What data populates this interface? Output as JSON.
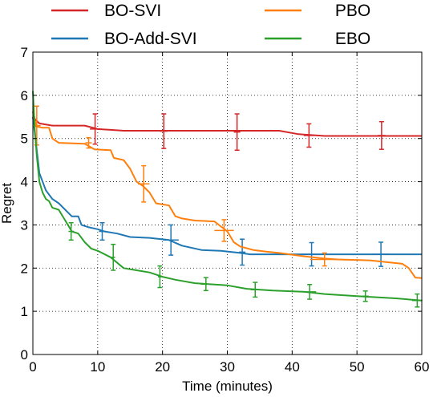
{
  "chart_data": {
    "type": "line",
    "xlabel": "Time (minutes)",
    "ylabel": "Regret",
    "xlim": [
      0,
      60
    ],
    "ylim": [
      0,
      7
    ],
    "xticks": [
      0,
      10,
      20,
      30,
      40,
      50,
      60
    ],
    "yticks": [
      0,
      1,
      2,
      3,
      4,
      5,
      6,
      7
    ],
    "grid": true,
    "legend_placement": "top",
    "series": [
      {
        "name": "BO-SVI",
        "color": "#d62728",
        "points": [
          [
            0,
            5.62
          ],
          [
            0.3,
            5.45
          ],
          [
            1,
            5.35
          ],
          [
            3,
            5.3
          ],
          [
            8,
            5.3
          ],
          [
            10,
            5.22
          ],
          [
            12,
            5.2
          ],
          [
            14,
            5.18
          ],
          [
            38,
            5.18
          ],
          [
            41,
            5.1
          ],
          [
            45,
            5.06
          ],
          [
            60,
            5.06
          ]
        ],
        "error_bars": [
          {
            "x": 9.6,
            "y": 5.22,
            "yerr": 0.35,
            "xerr": 0.8
          },
          {
            "x": 20.2,
            "y": 5.17,
            "yerr": 0.4,
            "xerr": 0.6
          },
          {
            "x": 31.5,
            "y": 5.15,
            "yerr": 0.42,
            "xerr": 0.5
          },
          {
            "x": 42.6,
            "y": 5.07,
            "yerr": 0.27,
            "xerr": 0.8
          },
          {
            "x": 53.8,
            "y": 5.07,
            "yerr": 0.32,
            "xerr": 0.6
          }
        ]
      },
      {
        "name": "BO-Add-SVI",
        "color": "#1f77b4",
        "points": [
          [
            0,
            5.5
          ],
          [
            0.4,
            5.0
          ],
          [
            1,
            4.2
          ],
          [
            2,
            3.8
          ],
          [
            3,
            3.6
          ],
          [
            4,
            3.5
          ],
          [
            5,
            3.35
          ],
          [
            6,
            3.2
          ],
          [
            7,
            3.2
          ],
          [
            7.5,
            3.0
          ],
          [
            8.5,
            2.95
          ],
          [
            10,
            2.9
          ],
          [
            11,
            2.85
          ],
          [
            13,
            2.8
          ],
          [
            15,
            2.72
          ],
          [
            18,
            2.7
          ],
          [
            21,
            2.65
          ],
          [
            23,
            2.52
          ],
          [
            26,
            2.42
          ],
          [
            29,
            2.4
          ],
          [
            32,
            2.35
          ],
          [
            33.5,
            2.32
          ],
          [
            60,
            2.32
          ]
        ],
        "error_bars": [
          {
            "x": 10.7,
            "y": 2.85,
            "yerr": 0.2,
            "xerr": 0.5
          },
          {
            "x": 21.3,
            "y": 2.65,
            "yerr": 0.35,
            "xerr": 1.2
          },
          {
            "x": 32.3,
            "y": 2.37,
            "yerr": 0.3,
            "xerr": 0.5
          },
          {
            "x": 43.0,
            "y": 2.32,
            "yerr": 0.27,
            "xerr": 1.5
          },
          {
            "x": 53.7,
            "y": 2.32,
            "yerr": 0.28,
            "xerr": 1.3
          }
        ]
      },
      {
        "name": "PBO",
        "color": "#ff7f0e",
        "points": [
          [
            0,
            5.62
          ],
          [
            0.5,
            5.28
          ],
          [
            1.5,
            5.25
          ],
          [
            2.5,
            5.25
          ],
          [
            3,
            5.0
          ],
          [
            4,
            4.9
          ],
          [
            8,
            4.88
          ],
          [
            9.5,
            4.75
          ],
          [
            12,
            4.73
          ],
          [
            12.5,
            4.55
          ],
          [
            14,
            4.5
          ],
          [
            15,
            4.3
          ],
          [
            16,
            4.0
          ],
          [
            17,
            3.9
          ],
          [
            18,
            3.75
          ],
          [
            19,
            3.5
          ],
          [
            21,
            3.45
          ],
          [
            22,
            3.2
          ],
          [
            23,
            3.15
          ],
          [
            25,
            3.1
          ],
          [
            28,
            3.08
          ],
          [
            30,
            2.85
          ],
          [
            31,
            2.6
          ],
          [
            32,
            2.5
          ],
          [
            34,
            2.42
          ],
          [
            36,
            2.38
          ],
          [
            38,
            2.35
          ],
          [
            42,
            2.27
          ],
          [
            45,
            2.22
          ],
          [
            47,
            2.2
          ],
          [
            52,
            2.18
          ],
          [
            57,
            2.1
          ],
          [
            58,
            2.0
          ],
          [
            59,
            1.78
          ],
          [
            60,
            1.77
          ]
        ],
        "error_bars": [
          {
            "x": 0.6,
            "y": 5.3,
            "yerr": 0.45,
            "xerr": 0.6
          },
          {
            "x": 8.6,
            "y": 4.9,
            "yerr": 0.12,
            "xerr": 0.5
          },
          {
            "x": 17.1,
            "y": 3.95,
            "yerr": 0.42,
            "xerr": 0.9
          },
          {
            "x": 29.5,
            "y": 2.87,
            "yerr": 0.25,
            "xerr": 1.5
          },
          {
            "x": 45.0,
            "y": 2.2,
            "yerr": 0.15,
            "xerr": 2.2
          }
        ]
      },
      {
        "name": "EBO",
        "color": "#2ca02c",
        "points": [
          [
            0,
            6.1
          ],
          [
            0.3,
            5.2
          ],
          [
            0.6,
            4.6
          ],
          [
            1,
            4.0
          ],
          [
            1.5,
            3.75
          ],
          [
            2,
            3.6
          ],
          [
            2.5,
            3.55
          ],
          [
            3,
            3.4
          ],
          [
            4,
            3.35
          ],
          [
            5,
            3.1
          ],
          [
            6,
            2.85
          ],
          [
            7,
            2.8
          ],
          [
            8,
            2.6
          ],
          [
            9,
            2.45
          ],
          [
            10,
            2.4
          ],
          [
            12,
            2.25
          ],
          [
            14,
            2.0
          ],
          [
            16,
            1.95
          ],
          [
            18,
            1.9
          ],
          [
            20,
            1.8
          ],
          [
            22,
            1.73
          ],
          [
            25,
            1.65
          ],
          [
            30,
            1.6
          ],
          [
            33,
            1.52
          ],
          [
            37,
            1.48
          ],
          [
            42,
            1.45
          ],
          [
            45,
            1.4
          ],
          [
            50,
            1.35
          ],
          [
            56,
            1.3
          ],
          [
            60,
            1.25
          ]
        ],
        "error_bars": [
          {
            "x": 5.9,
            "y": 2.85,
            "yerr": 0.2,
            "xerr": 0.4
          },
          {
            "x": 12.4,
            "y": 2.25,
            "yerr": 0.3,
            "xerr": 0.3
          },
          {
            "x": 19.6,
            "y": 1.8,
            "yerr": 0.25,
            "xerr": 0.3
          },
          {
            "x": 26.7,
            "y": 1.63,
            "yerr": 0.15,
            "xerr": 0.8
          },
          {
            "x": 34.3,
            "y": 1.5,
            "yerr": 0.17,
            "xerr": 0.7
          },
          {
            "x": 42.7,
            "y": 1.45,
            "yerr": 0.17,
            "xerr": 1.0
          },
          {
            "x": 51.3,
            "y": 1.35,
            "yerr": 0.12,
            "xerr": 0.5
          },
          {
            "x": 59.3,
            "y": 1.25,
            "yerr": 0.15,
            "xerr": 0.8
          }
        ]
      }
    ]
  }
}
